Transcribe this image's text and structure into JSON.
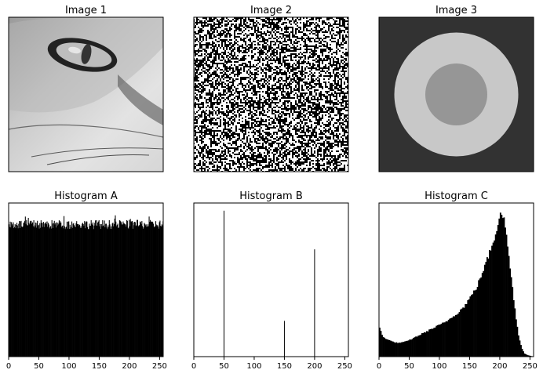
{
  "images": [
    {
      "title": "Image 1",
      "kind": "photo-cat-eye-grayscale"
    },
    {
      "title": "Image 2",
      "kind": "random-noise"
    },
    {
      "title": "Image 3",
      "kind": "concentric-circles",
      "levels": {
        "background": 50,
        "ring": 200,
        "center": 150
      }
    }
  ],
  "chart_data": [
    {
      "type": "bar",
      "title": "Histogram A",
      "xlabel": "",
      "ylabel": "",
      "xlim": [
        0,
        256
      ],
      "x_ticks": [
        0,
        50,
        100,
        150,
        200,
        250
      ],
      "y_ticks_shown": false,
      "description_values": "approximately uniform counts over pixel values 0-255",
      "bins": 256,
      "relative_level_mean": 0.865,
      "relative_level_range": [
        0.83,
        0.93
      ]
    },
    {
      "type": "bar",
      "title": "Histogram B",
      "xlabel": "",
      "ylabel": "",
      "xlim": [
        0,
        256
      ],
      "x_ticks": [
        0,
        50,
        100,
        150,
        200,
        250
      ],
      "y_ticks_shown": false,
      "x": [
        50,
        150,
        200
      ],
      "values": [
        1.0,
        0.245,
        0.735
      ]
    },
    {
      "type": "bar",
      "title": "Histogram C",
      "xlabel": "",
      "ylabel": "",
      "xlim": [
        0,
        256
      ],
      "x_ticks": [
        0,
        50,
        100,
        150,
        200,
        250
      ],
      "y_ticks_shown": false,
      "x": [
        0,
        5,
        10,
        20,
        30,
        40,
        50,
        60,
        70,
        80,
        90,
        100,
        110,
        120,
        130,
        140,
        150,
        160,
        170,
        180,
        190,
        195,
        200,
        205,
        210,
        215,
        220,
        225,
        230,
        235,
        240,
        245,
        250,
        255
      ],
      "values": [
        0.19,
        0.13,
        0.12,
        0.1,
        0.09,
        0.095,
        0.11,
        0.13,
        0.15,
        0.17,
        0.19,
        0.21,
        0.23,
        0.26,
        0.29,
        0.33,
        0.39,
        0.45,
        0.55,
        0.66,
        0.78,
        0.86,
        0.96,
        0.92,
        0.8,
        0.62,
        0.45,
        0.28,
        0.14,
        0.06,
        0.02,
        0.01,
        0.005,
        0.0
      ]
    }
  ]
}
